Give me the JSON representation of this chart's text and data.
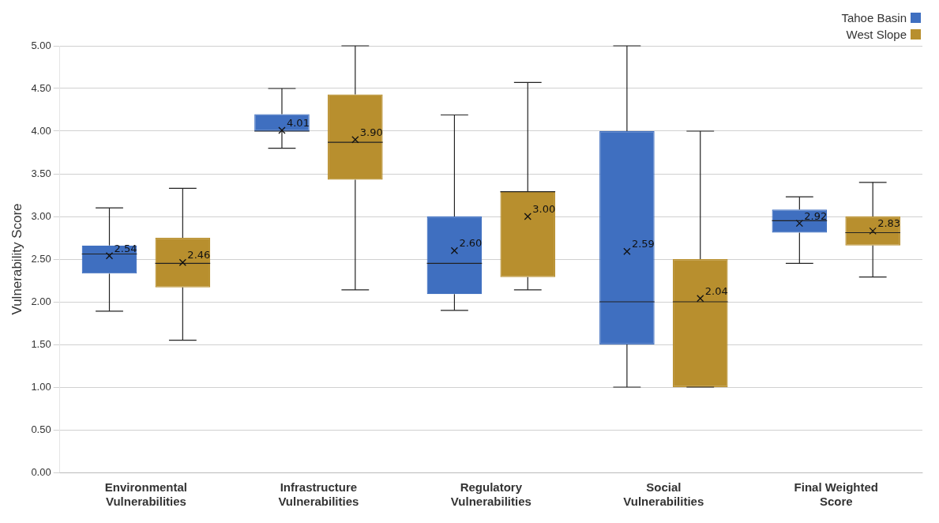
{
  "chart_data": {
    "type": "box",
    "ylabel": "Vulnerability Score",
    "categories": [
      "Environmental Vulnerabilities",
      "Infrastructure Vulnerabilities",
      "Regulatory Vulnerabilities",
      "Social Vulnerabilities",
      "Final Weighted Score"
    ],
    "ylim": [
      0,
      5
    ],
    "yticks": [
      {
        "value": 0,
        "label": "0.00"
      },
      {
        "value": 0.5,
        "label": "0.50"
      },
      {
        "value": 1,
        "label": "1.00"
      },
      {
        "value": 1.5,
        "label": "1.50"
      },
      {
        "value": 2,
        "label": "2.00"
      },
      {
        "value": 2.5,
        "label": "2.50"
      },
      {
        "value": 3,
        "label": "3.00"
      },
      {
        "value": 3.5,
        "label": "3.50"
      },
      {
        "value": 4,
        "label": "4.00"
      },
      {
        "value": 4.5,
        "label": "4.50"
      },
      {
        "value": 5,
        "label": "5.00"
      }
    ],
    "grid": "y",
    "legend": "top right",
    "series": [
      {
        "name": "Tahoe Basin",
        "color": "#3f6fc0",
        "value_labels": [
          "2.54",
          "4.01",
          "2.60",
          "2.59",
          "2.92"
        ],
        "boxes": [
          {
            "low": 1.89,
            "q1": 2.33,
            "median": 2.56,
            "q3": 2.66,
            "high": 3.1,
            "mean": 2.54
          },
          {
            "low": 3.8,
            "q1": 4.0,
            "median": 4.0,
            "q3": 4.2,
            "high": 4.5,
            "mean": 4.01
          },
          {
            "low": 1.9,
            "q1": 2.09,
            "median": 2.45,
            "q3": 3.0,
            "high": 4.19,
            "mean": 2.6
          },
          {
            "low": 1.0,
            "q1": 1.5,
            "median": 2.0,
            "q3": 4.0,
            "high": 5.0,
            "mean": 2.59
          },
          {
            "low": 2.45,
            "q1": 2.81,
            "median": 2.95,
            "q3": 3.08,
            "high": 3.23,
            "mean": 2.92
          }
        ]
      },
      {
        "name": "West Slope",
        "color": "#b88f2e",
        "value_labels": [
          "2.46",
          "3.90",
          "3.00",
          "2.04",
          "2.83"
        ],
        "boxes": [
          {
            "low": 1.55,
            "q1": 2.17,
            "median": 2.45,
            "q3": 2.75,
            "high": 3.33,
            "mean": 2.46
          },
          {
            "low": 2.14,
            "q1": 3.43,
            "median": 3.87,
            "q3": 4.43,
            "high": 5.0,
            "mean": 3.9
          },
          {
            "low": 2.14,
            "q1": 2.29,
            "median": 3.29,
            "q3": 3.29,
            "high": 4.57,
            "mean": 3.0
          },
          {
            "low": 1.0,
            "q1": 1.0,
            "median": 2.0,
            "q3": 2.5,
            "high": 4.0,
            "mean": 2.04
          },
          {
            "low": 2.29,
            "q1": 2.66,
            "median": 2.81,
            "q3": 3.0,
            "high": 3.4,
            "mean": 2.83
          }
        ]
      }
    ]
  }
}
